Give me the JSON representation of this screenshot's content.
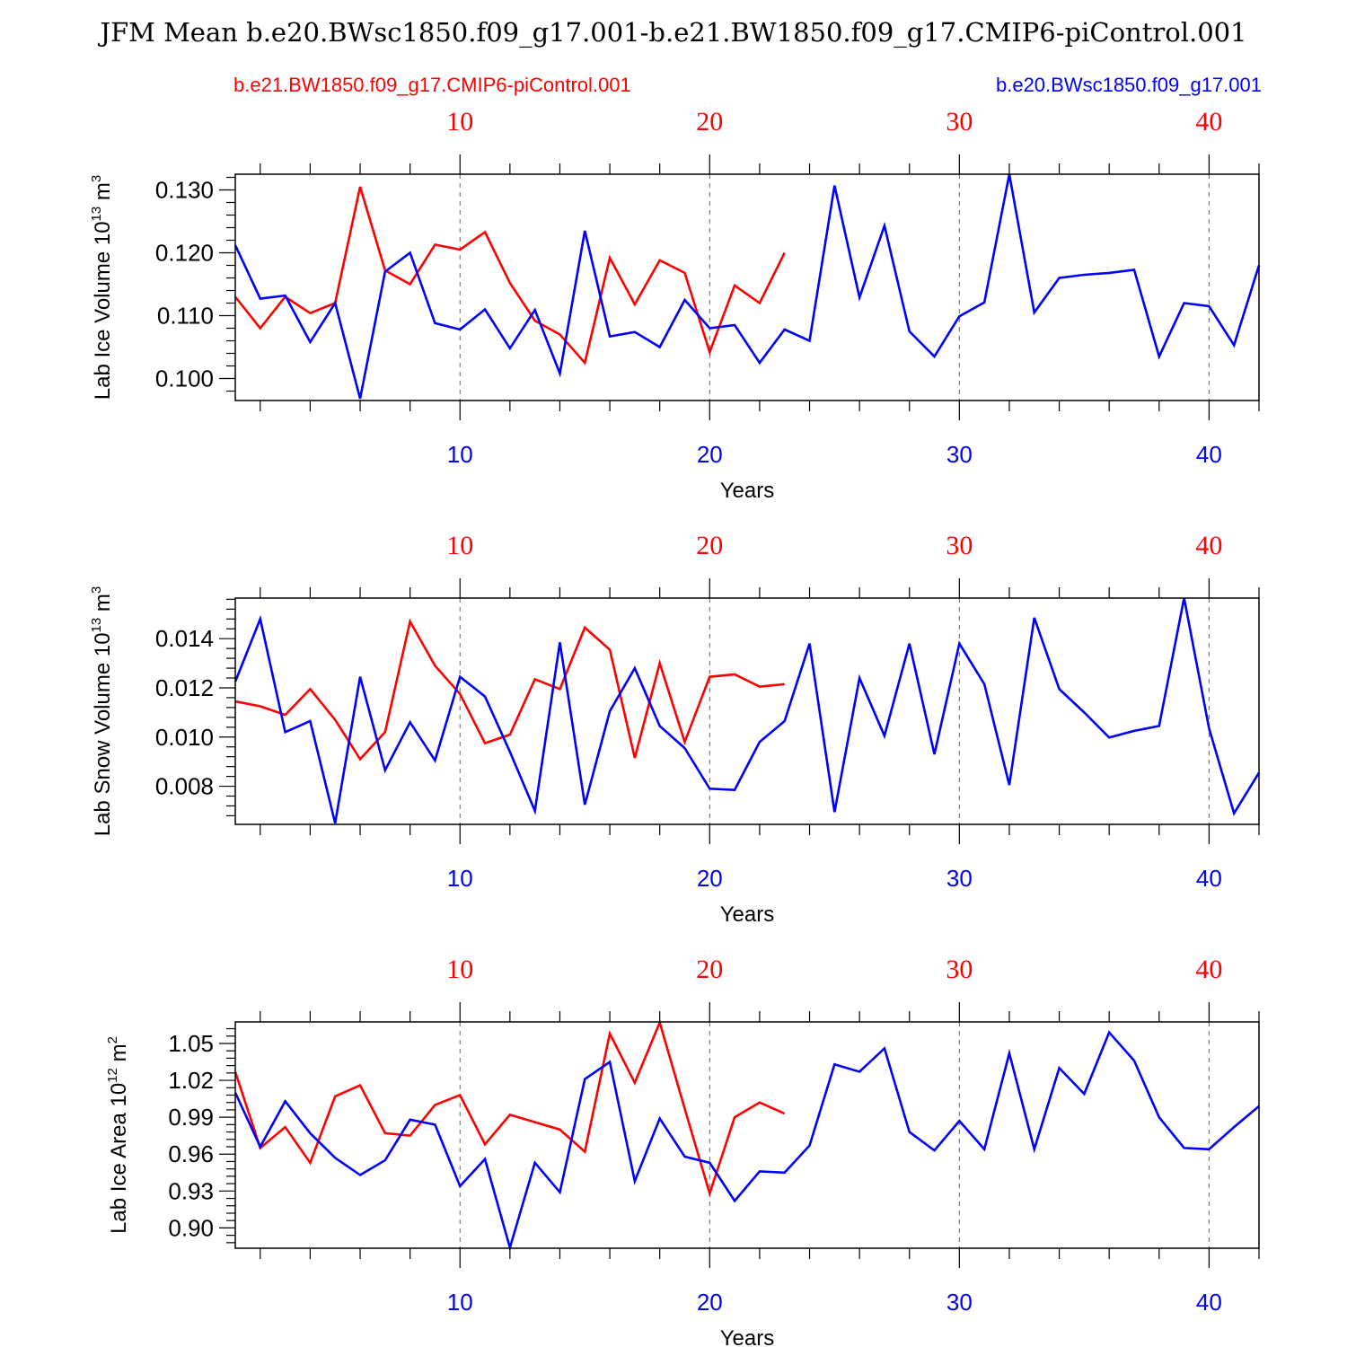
{
  "figure": {
    "title": "JFM Mean b.e20.BWsc1850.f09_g17.001-b.e21.BW1850.f09_g17.CMIP6-piControl.001",
    "legend_left": "b.e21.BW1850.f09_g17.CMIP6-piControl.001",
    "legend_right": "b.e20.BWsc1850.f09_g17.001",
    "colors": {
      "red": "#ff0000",
      "blue": "#0000ff"
    }
  },
  "chart_data": [
    {
      "type": "line",
      "title": "",
      "xlabel": "Years",
      "ylabel": "Lab Ice Volume",
      "ylabel_unit": "10",
      "ylabel_exp": "13",
      "ylabel_unit2": "m",
      "ylabel_unit2_exp": "3",
      "xlim": [
        1,
        42
      ],
      "ylim": [
        0.0965,
        0.1325
      ],
      "yticks": [
        "0.100",
        "0.110",
        "0.120",
        "0.130"
      ],
      "ytick_values": [
        0.1,
        0.11,
        0.12,
        0.13
      ],
      "xticks_bottom": [
        "10",
        "20",
        "30",
        "40"
      ],
      "xticks_top": [
        "10",
        "20",
        "30",
        "40"
      ],
      "grid": "dashed vertical at major x ticks",
      "series": [
        {
          "name": "b.e21.BW1850.f09_g17.CMIP6-piControl.001",
          "color": "#ff0000",
          "values": [
            0.113,
            0.108,
            0.113,
            0.1104,
            0.112,
            0.1305,
            0.1172,
            0.115,
            0.1213,
            0.1205,
            0.1233,
            0.1152,
            0.1092,
            0.107,
            0.1025,
            0.1192,
            0.1118,
            0.1188,
            0.1168,
            0.1042,
            0.1148,
            0.112,
            0.12
          ]
        },
        {
          "name": "b.e20.BWsc1850.f09_g17.001",
          "color": "#0000ff",
          "values": [
            0.1212,
            0.1127,
            0.1132,
            0.1058,
            0.112,
            0.0968,
            0.117,
            0.12,
            0.1088,
            0.1078,
            0.111,
            0.1048,
            0.1109,
            0.1008,
            0.1235,
            0.1067,
            0.1074,
            0.105,
            0.1125,
            0.108,
            0.1085,
            0.1025,
            0.1078,
            0.106,
            0.1307,
            0.1129,
            0.1243,
            0.1075,
            0.1035,
            0.1099,
            0.1121,
            0.1325,
            0.1105,
            0.116,
            0.1165,
            0.1168,
            0.1173,
            0.1035,
            0.112,
            0.1115,
            0.1053,
            0.118
          ]
        }
      ]
    },
    {
      "type": "line",
      "title": "",
      "xlabel": "Years",
      "ylabel": "Lab Snow Volume",
      "ylabel_unit": "10",
      "ylabel_exp": "13",
      "ylabel_unit2": "m",
      "ylabel_unit2_exp": "3",
      "xlim": [
        1,
        42
      ],
      "ylim": [
        0.00645,
        0.01565
      ],
      "yticks": [
        "0.008",
        "0.010",
        "0.012",
        "0.014"
      ],
      "ytick_values": [
        0.008,
        0.01,
        0.012,
        0.014
      ],
      "xticks_bottom": [
        "10",
        "20",
        "30",
        "40"
      ],
      "xticks_top": [
        "10",
        "20",
        "30",
        "40"
      ],
      "grid": "dashed vertical at major x ticks",
      "series": [
        {
          "name": "b.e21.BW1850.f09_g17.CMIP6-piControl.001",
          "color": "#ff0000",
          "values": [
            0.01145,
            0.01125,
            0.0109,
            0.01195,
            0.0107,
            0.0091,
            0.0102,
            0.0147,
            0.0129,
            0.01175,
            0.00975,
            0.0101,
            0.01235,
            0.01195,
            0.01445,
            0.01355,
            0.00915,
            0.013,
            0.0098,
            0.01245,
            0.01255,
            0.01205,
            0.01215
          ]
        },
        {
          "name": "b.e20.BWsc1850.f09_g17.001",
          "color": "#0000ff",
          "values": [
            0.01225,
            0.0148,
            0.0102,
            0.01065,
            0.0065,
            0.01245,
            0.00865,
            0.0106,
            0.00905,
            0.01245,
            0.01165,
            0.0094,
            0.007,
            0.01385,
            0.00725,
            0.01105,
            0.0128,
            0.01045,
            0.00955,
            0.0079,
            0.00785,
            0.0098,
            0.01065,
            0.0138,
            0.00695,
            0.0124,
            0.01005,
            0.0138,
            0.0093,
            0.0138,
            0.01215,
            0.00805,
            0.01485,
            0.01195,
            0.011,
            0.00998,
            0.01025,
            0.01045,
            0.01565,
            0.01035,
            0.0069,
            0.00855
          ]
        }
      ]
    },
    {
      "type": "line",
      "title": "",
      "xlabel": "Years",
      "ylabel": "Lab Ice Area",
      "ylabel_unit": "10",
      "ylabel_exp": "12",
      "ylabel_unit2": "m",
      "ylabel_unit2_exp": "2",
      "xlim": [
        1,
        42
      ],
      "ylim": [
        0.8835,
        1.0675
      ],
      "yticks": [
        "0.90",
        "0.93",
        "0.96",
        "0.99",
        "1.02",
        "1.05"
      ],
      "ytick_values": [
        0.9,
        0.93,
        0.96,
        0.99,
        1.02,
        1.05
      ],
      "xticks_bottom": [
        "10",
        "20",
        "30",
        "40"
      ],
      "xticks_top": [
        "10",
        "20",
        "30",
        "40"
      ],
      "grid": "dashed vertical at major x ticks",
      "series": [
        {
          "name": "b.e21.BW1850.f09_g17.CMIP6-piControl.001",
          "color": "#ff0000",
          "values": [
            1.027,
            0.965,
            0.982,
            0.953,
            1.007,
            1.016,
            0.977,
            0.975,
            1.0,
            1.008,
            0.968,
            0.992,
            0.986,
            0.98,
            0.962,
            1.058,
            1.018,
            1.067,
            0.997,
            0.928,
            0.99,
            1.002,
            0.993
          ]
        },
        {
          "name": "b.e20.BWsc1850.f09_g17.001",
          "color": "#0000ff",
          "values": [
            1.01,
            0.966,
            1.003,
            0.977,
            0.957,
            0.943,
            0.955,
            0.988,
            0.984,
            0.934,
            0.956,
            0.884,
            0.953,
            0.929,
            1.021,
            1.035,
            0.938,
            0.989,
            0.958,
            0.953,
            0.922,
            0.946,
            0.945,
            0.967,
            1.033,
            1.027,
            1.046,
            0.978,
            0.963,
            0.987,
            0.964,
            1.042,
            0.964,
            1.03,
            1.009,
            1.059,
            1.036,
            0.99,
            0.965,
            0.964,
            0.982,
            0.999
          ]
        }
      ]
    }
  ]
}
